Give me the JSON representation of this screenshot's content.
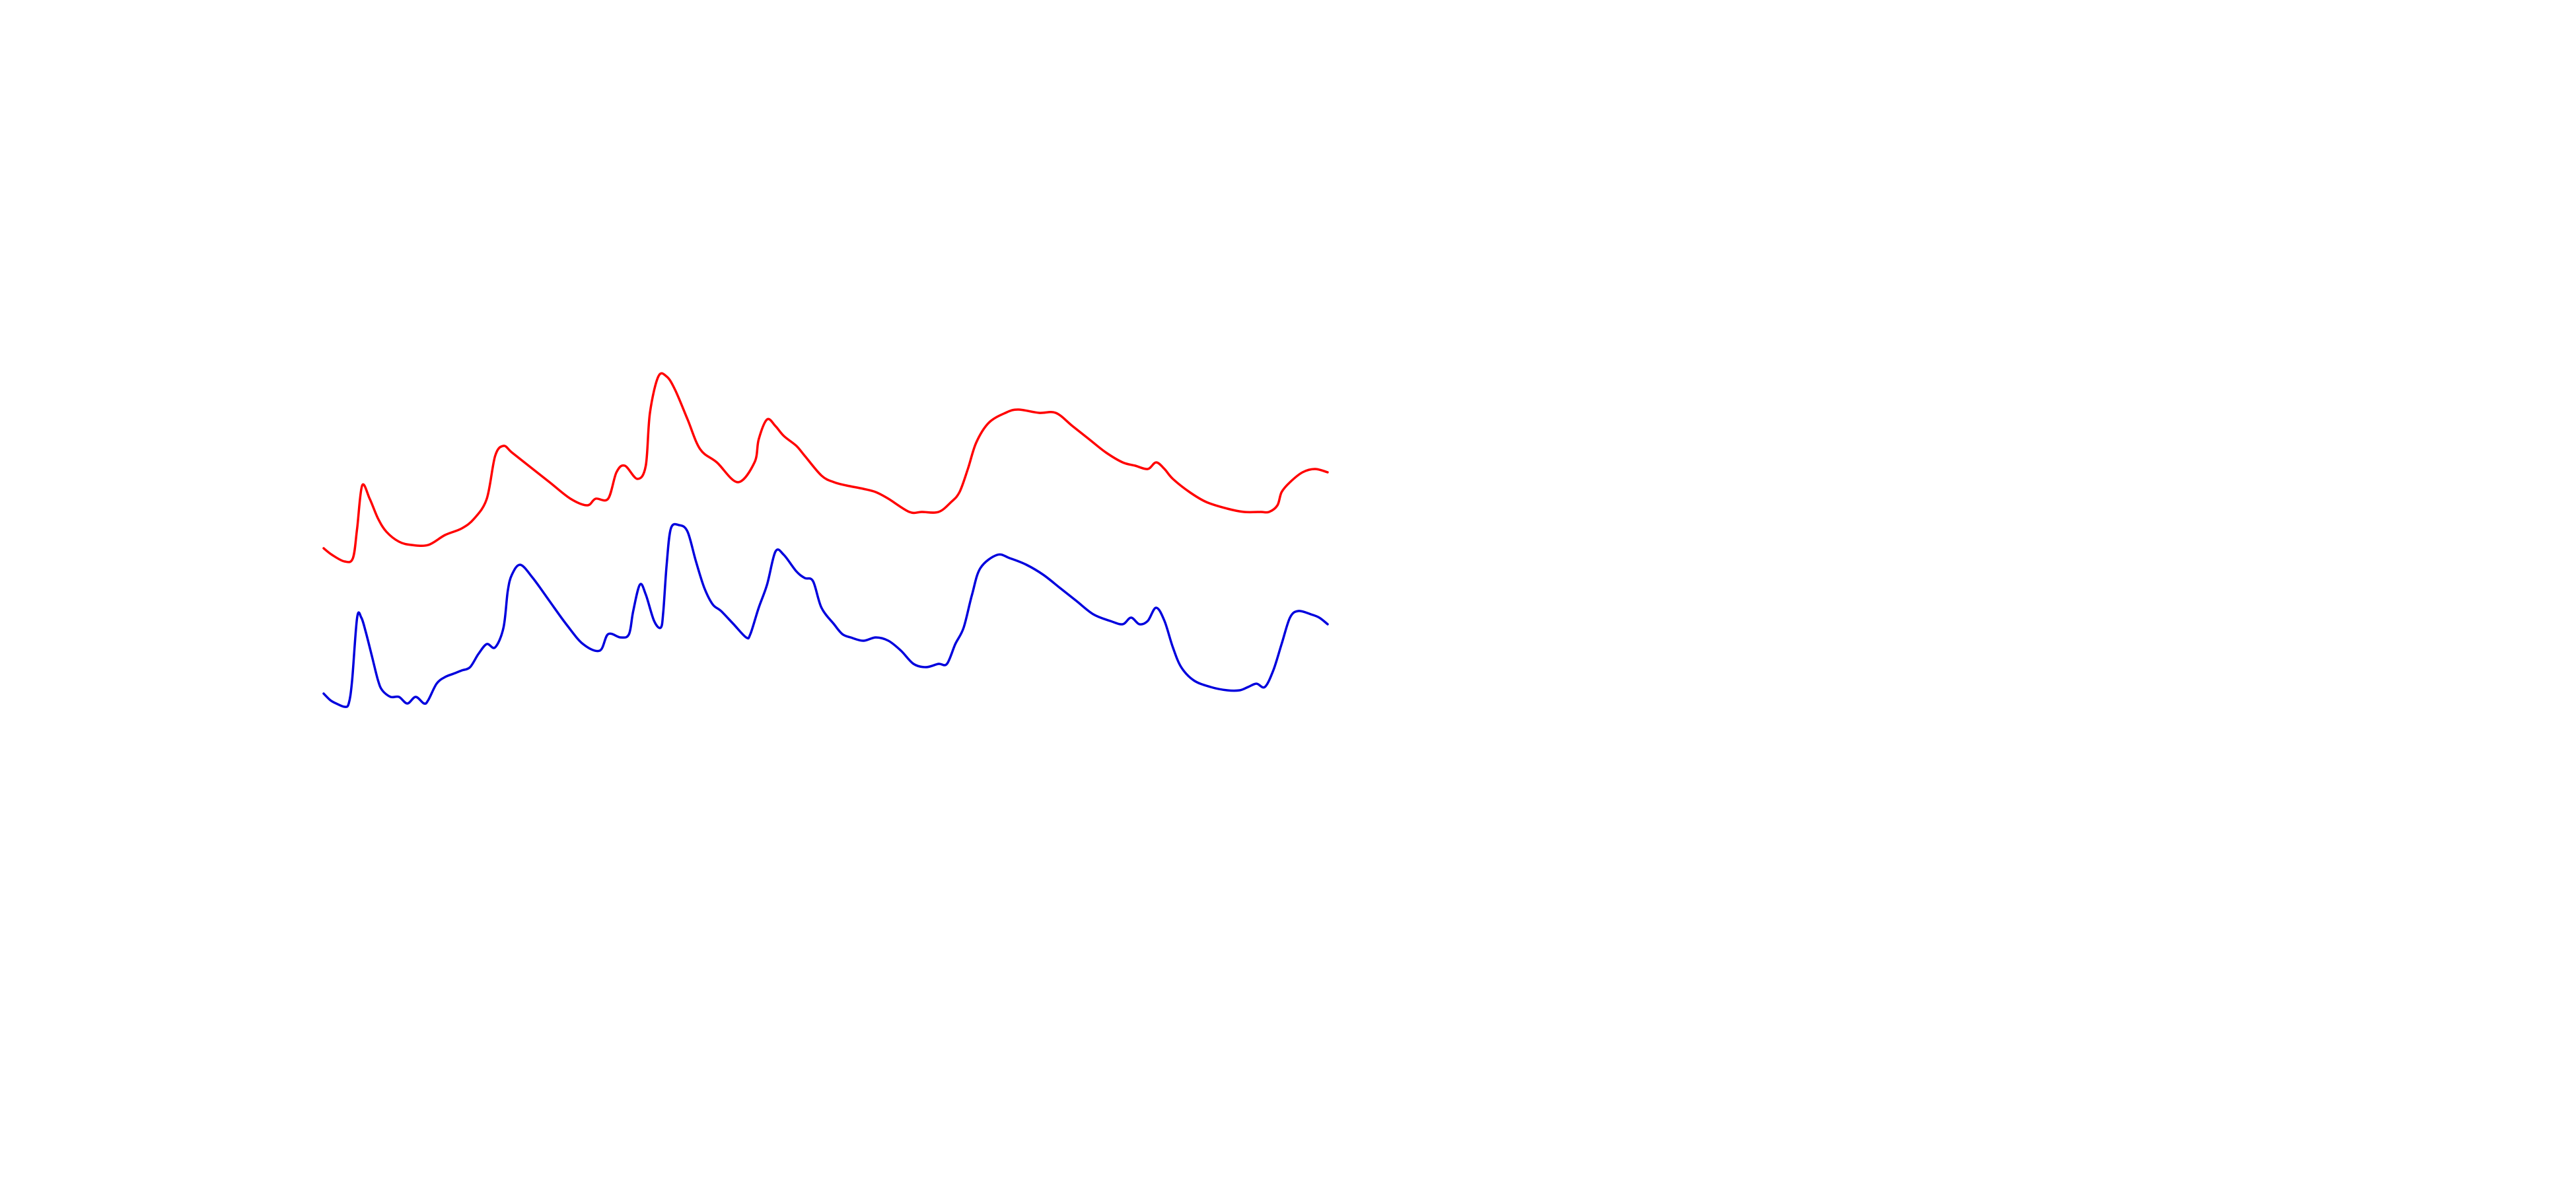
{
  "chart_data": {
    "type": "line",
    "title": "",
    "xlabel": "",
    "ylabel": "",
    "grid": false,
    "legend": "none",
    "axes_visible": false,
    "xlim": [
      0,
      120
    ],
    "ylim": [
      0,
      1
    ],
    "series": [
      {
        "color": "#ff0000",
        "points": [
          [
            0.0,
            0.57
          ],
          [
            1.0,
            0.56
          ],
          [
            2.5,
            0.55
          ],
          [
            3.5,
            0.555
          ],
          [
            4.0,
            0.6
          ],
          [
            4.6,
            0.665
          ],
          [
            5.5,
            0.645
          ],
          [
            6.5,
            0.615
          ],
          [
            7.5,
            0.595
          ],
          [
            9.0,
            0.58
          ],
          [
            10.5,
            0.575
          ],
          [
            12.5,
            0.575
          ],
          [
            14.5,
            0.59
          ],
          [
            16.5,
            0.6
          ],
          [
            18.0,
            0.615
          ],
          [
            19.5,
            0.645
          ],
          [
            20.5,
            0.71
          ],
          [
            21.5,
            0.725
          ],
          [
            22.5,
            0.715
          ],
          [
            24.5,
            0.695
          ],
          [
            27.0,
            0.67
          ],
          [
            29.5,
            0.645
          ],
          [
            31.5,
            0.635
          ],
          [
            32.5,
            0.645
          ],
          [
            34.0,
            0.645
          ],
          [
            35.0,
            0.685
          ],
          [
            36.0,
            0.695
          ],
          [
            37.5,
            0.675
          ],
          [
            38.5,
            0.695
          ],
          [
            39.0,
            0.775
          ],
          [
            40.0,
            0.83
          ],
          [
            41.0,
            0.83
          ],
          [
            42.0,
            0.81
          ],
          [
            43.5,
            0.765
          ],
          [
            45.0,
            0.72
          ],
          [
            47.0,
            0.7
          ],
          [
            49.5,
            0.67
          ],
          [
            51.5,
            0.7
          ],
          [
            52.0,
            0.735
          ],
          [
            53.0,
            0.765
          ],
          [
            54.0,
            0.755
          ],
          [
            55.0,
            0.74
          ],
          [
            56.5,
            0.725
          ],
          [
            57.5,
            0.71
          ],
          [
            59.5,
            0.68
          ],
          [
            61.0,
            0.67
          ],
          [
            62.5,
            0.665
          ],
          [
            64.5,
            0.66
          ],
          [
            66.0,
            0.655
          ],
          [
            67.5,
            0.645
          ],
          [
            70.0,
            0.625
          ],
          [
            71.5,
            0.625
          ],
          [
            73.5,
            0.625
          ],
          [
            75.0,
            0.64
          ],
          [
            76.0,
            0.655
          ],
          [
            77.0,
            0.69
          ],
          [
            78.0,
            0.73
          ],
          [
            79.5,
            0.76
          ],
          [
            81.5,
            0.775
          ],
          [
            83.0,
            0.78
          ],
          [
            85.5,
            0.775
          ],
          [
            87.5,
            0.775
          ],
          [
            89.5,
            0.755
          ],
          [
            91.5,
            0.735
          ],
          [
            93.5,
            0.715
          ],
          [
            95.5,
            0.7
          ],
          [
            97.0,
            0.695
          ],
          [
            98.5,
            0.69
          ],
          [
            99.5,
            0.7
          ],
          [
            100.5,
            0.69
          ],
          [
            101.5,
            0.675
          ],
          [
            103.5,
            0.655
          ],
          [
            105.5,
            0.64
          ],
          [
            108.0,
            0.63
          ],
          [
            110.0,
            0.625
          ],
          [
            112.0,
            0.625
          ],
          [
            113.0,
            0.625
          ],
          [
            114.0,
            0.635
          ],
          [
            114.5,
            0.655
          ],
          [
            115.5,
            0.67
          ],
          [
            117.0,
            0.685
          ],
          [
            118.5,
            0.69
          ],
          [
            120.0,
            0.685
          ]
        ]
      },
      {
        "color": "#0000dd",
        "points": [
          [
            0.0,
            0.35
          ],
          [
            0.8,
            0.34
          ],
          [
            1.5,
            0.335
          ],
          [
            2.5,
            0.33
          ],
          [
            3.0,
            0.335
          ],
          [
            3.4,
            0.37
          ],
          [
            4.0,
            0.465
          ],
          [
            4.5,
            0.465
          ],
          [
            5.0,
            0.445
          ],
          [
            5.8,
            0.405
          ],
          [
            6.5,
            0.37
          ],
          [
            7.0,
            0.355
          ],
          [
            8.0,
            0.345
          ],
          [
            9.0,
            0.345
          ],
          [
            10.0,
            0.335
          ],
          [
            11.0,
            0.345
          ],
          [
            12.0,
            0.335
          ],
          [
            12.5,
            0.34
          ],
          [
            13.5,
            0.365
          ],
          [
            14.5,
            0.375
          ],
          [
            15.5,
            0.38
          ],
          [
            16.5,
            0.385
          ],
          [
            17.5,
            0.39
          ],
          [
            18.5,
            0.41
          ],
          [
            19.5,
            0.425
          ],
          [
            20.5,
            0.42
          ],
          [
            21.5,
            0.45
          ],
          [
            22.0,
            0.505
          ],
          [
            22.5,
            0.53
          ],
          [
            23.5,
            0.545
          ],
          [
            25.0,
            0.525
          ],
          [
            27.0,
            0.49
          ],
          [
            29.0,
            0.455
          ],
          [
            31.0,
            0.425
          ],
          [
            33.0,
            0.415
          ],
          [
            34.0,
            0.44
          ],
          [
            35.5,
            0.435
          ],
          [
            36.5,
            0.44
          ],
          [
            37.0,
            0.475
          ],
          [
            37.8,
            0.515
          ],
          [
            38.5,
            0.5
          ],
          [
            39.5,
            0.46
          ],
          [
            40.3,
            0.45
          ],
          [
            40.6,
            0.475
          ],
          [
            41.0,
            0.545
          ],
          [
            41.5,
            0.6
          ],
          [
            42.5,
            0.605
          ],
          [
            43.5,
            0.595
          ],
          [
            44.5,
            0.55
          ],
          [
            45.5,
            0.51
          ],
          [
            46.5,
            0.485
          ],
          [
            47.5,
            0.475
          ],
          [
            49.0,
            0.455
          ],
          [
            50.5,
            0.435
          ],
          [
            51.0,
            0.44
          ],
          [
            52.0,
            0.48
          ],
          [
            53.0,
            0.515
          ],
          [
            54.0,
            0.565
          ],
          [
            55.0,
            0.56
          ],
          [
            56.5,
            0.535
          ],
          [
            57.5,
            0.525
          ],
          [
            58.5,
            0.52
          ],
          [
            59.5,
            0.48
          ],
          [
            61.0,
            0.455
          ],
          [
            62.0,
            0.44
          ],
          [
            63.0,
            0.435
          ],
          [
            64.5,
            0.43
          ],
          [
            66.0,
            0.435
          ],
          [
            67.5,
            0.43
          ],
          [
            69.0,
            0.415
          ],
          [
            70.5,
            0.395
          ],
          [
            72.0,
            0.39
          ],
          [
            73.5,
            0.395
          ],
          [
            74.5,
            0.395
          ],
          [
            75.5,
            0.425
          ],
          [
            76.5,
            0.45
          ],
          [
            77.5,
            0.5
          ],
          [
            78.5,
            0.54
          ],
          [
            80.5,
            0.56
          ],
          [
            82.0,
            0.555
          ],
          [
            84.0,
            0.545
          ],
          [
            86.0,
            0.53
          ],
          [
            88.0,
            0.51
          ],
          [
            90.0,
            0.49
          ],
          [
            92.0,
            0.47
          ],
          [
            94.0,
            0.46
          ],
          [
            95.5,
            0.455
          ],
          [
            96.5,
            0.465
          ],
          [
            97.5,
            0.455
          ],
          [
            98.5,
            0.46
          ],
          [
            99.5,
            0.48
          ],
          [
            100.5,
            0.46
          ],
          [
            101.5,
            0.42
          ],
          [
            102.5,
            0.39
          ],
          [
            104.0,
            0.37
          ],
          [
            106.0,
            0.36
          ],
          [
            108.0,
            0.355
          ],
          [
            109.5,
            0.355
          ],
          [
            110.5,
            0.36
          ],
          [
            111.5,
            0.365
          ],
          [
            112.5,
            0.36
          ],
          [
            113.5,
            0.385
          ],
          [
            114.5,
            0.425
          ],
          [
            115.5,
            0.465
          ],
          [
            116.5,
            0.475
          ],
          [
            118.0,
            0.47
          ],
          [
            119.0,
            0.465
          ],
          [
            120.0,
            0.455
          ]
        ]
      }
    ]
  }
}
